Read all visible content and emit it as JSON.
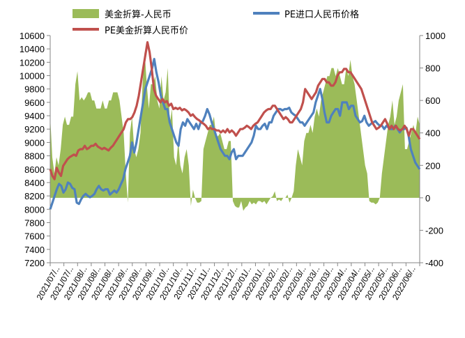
{
  "chart_data": {
    "type": "line",
    "title": "",
    "xlabel": "",
    "ylabel": "",
    "y_left": {
      "min": 7200,
      "max": 10600,
      "step": 200
    },
    "y_right": {
      "min": -400,
      "max": 1000,
      "step": 200
    },
    "grid": false,
    "legend_position": "top",
    "legend": [
      {
        "key": "diff",
        "label": "美金折算-人民币",
        "color": "#9bbb59",
        "style": "area"
      },
      {
        "key": "cny",
        "label": "PE进口人民币价格",
        "color": "#4f81bd",
        "style": "line"
      },
      {
        "key": "usd",
        "label": "PE美金折算人民币价",
        "color": "#c0504d",
        "style": "line"
      }
    ],
    "x_tick_labels": [
      "2021/07/..",
      "2021/07/..",
      "2021/08/..",
      "2021/08/..",
      "2021/08/..",
      "2021/09/..",
      "2021/09/..",
      "2021/09/..",
      "2021/10/..",
      "2021/10/..",
      "2021/11/..",
      "2021/11/..",
      "2021/12/..",
      "2021/12/..",
      "2022/01/..",
      "2022/01/..",
      "2022/02/..",
      "2022/02/..",
      "2022/03/..",
      "2022/03/..",
      "2022/03/..",
      "2022/04/..",
      "2022/04/..",
      "2022/05/..",
      "2022/05/..",
      "2022/06/..",
      "2022/06/.."
    ],
    "series": [
      {
        "name": "PE进口人民币价格",
        "axis": "left",
        "values": [
          8000,
          8100,
          8200,
          8300,
          8380,
          8350,
          8250,
          8300,
          8400,
          8380,
          8320,
          8300,
          8100,
          8080,
          8150,
          8200,
          8230,
          8200,
          8180,
          8200,
          8230,
          8300,
          8350,
          8300,
          8280,
          8300,
          8300,
          8220,
          8250,
          8280,
          8250,
          8300,
          8380,
          8450,
          8600,
          8700,
          8800,
          9000,
          8850,
          9000,
          9200,
          9400,
          9600,
          9800,
          9900,
          10000,
          10100,
          10250,
          10050,
          9900,
          9700,
          9600,
          9500,
          9500,
          9300,
          9200,
          9100,
          9000,
          8950,
          9200,
          9300,
          9250,
          9350,
          9300,
          9250,
          9200,
          9280,
          9200,
          9300,
          9320,
          9400,
          9500,
          9420,
          9300,
          9200,
          9100,
          9000,
          8900,
          8850,
          8800,
          8800,
          8750,
          8850,
          8900,
          8750,
          8800,
          8800,
          8800,
          8850,
          8900,
          8950,
          9000,
          9100,
          9250,
          9200,
          9200,
          9250,
          9280,
          9200,
          9300,
          9300,
          9400,
          9450,
          9500,
          9500,
          9480,
          9500,
          9500,
          9520,
          9450,
          9420,
          9400,
          9350,
          9300,
          9300,
          9250,
          9300,
          9350,
          9400,
          9450,
          9600,
          9700,
          9800,
          9650,
          9450,
          9300,
          9300,
          9400,
          9450,
          9500,
          9500,
          9400,
          9600,
          9600,
          9600,
          9500,
          9550,
          9550,
          9400,
          9350,
          9300,
          9320,
          9400,
          9300,
          9250,
          9280,
          9300,
          9320,
          9280,
          9250,
          9250,
          9200,
          9250,
          9220,
          9200,
          9200,
          9250,
          9200,
          9150,
          9200,
          9200,
          9220,
          9100,
          8900,
          8800,
          8700,
          8650,
          8600
        ]
      },
      {
        "name": "PE美金折算人民币价",
        "axis": "left",
        "values": [
          8600,
          8500,
          8450,
          8620,
          8550,
          8500,
          8650,
          8700,
          8750,
          8780,
          8800,
          8820,
          8800,
          8880,
          8900,
          8900,
          8950,
          8900,
          8920,
          8950,
          8950,
          8980,
          8940,
          8920,
          8900,
          8920,
          8900,
          8880,
          8920,
          8950,
          9000,
          9050,
          9100,
          9150,
          9200,
          9300,
          9350,
          9350,
          9380,
          9450,
          9550,
          9700,
          9900,
          10100,
          10300,
          10500,
          10350,
          10100,
          9800,
          9700,
          9650,
          9600,
          9650,
          9600,
          9620,
          9550,
          9580,
          9500,
          9520,
          9500,
          9520,
          9480,
          9500,
          9480,
          9450,
          9400,
          9420,
          9380,
          9350,
          9330,
          9300,
          9280,
          9250,
          9200,
          9220,
          9200,
          9200,
          9180,
          9180,
          9150,
          9180,
          9150,
          9200,
          9150,
          9180,
          9150,
          9100,
          9150,
          9200,
          9200,
          9220,
          9250,
          9230,
          9200,
          9250,
          9280,
          9300,
          9350,
          9400,
          9450,
          9480,
          9500,
          9500,
          9550,
          9550,
          9500,
          9450,
          9400,
          9350,
          9380,
          9350,
          9300,
          9300,
          9350,
          9400,
          9450,
          9500,
          9600,
          9800,
          9750,
          9700,
          9650,
          9700,
          9750,
          9850,
          9900,
          9950,
          9950,
          9900,
          9900,
          9850,
          9850,
          9900,
          10000,
          10050,
          10050,
          10100,
          10100,
          10050,
          10050,
          10000,
          9950,
          9900,
          9850,
          9800,
          9700,
          9600,
          9500,
          9400,
          9300,
          9250,
          9200,
          9220,
          9250,
          9300,
          9350,
          9280,
          9200,
          9250,
          9200,
          9250,
          9200,
          9180,
          9200,
          9250,
          9200,
          9100,
          9200,
          9200,
          9150,
          9100,
          9050
        ]
      },
      {
        "name": "美金折算-人民币",
        "axis": "right",
        "values": [
          500,
          250,
          150,
          250,
          200,
          300,
          450,
          500,
          450,
          450,
          500,
          500,
          700,
          780,
          600,
          620,
          600,
          620,
          650,
          650,
          600,
          600,
          550,
          550,
          550,
          600,
          550,
          550,
          600,
          600,
          650,
          650,
          650,
          600,
          500,
          400,
          150,
          -30,
          400,
          500,
          300,
          250,
          300,
          400,
          700,
          900,
          700,
          550,
          700,
          700,
          750,
          600,
          550,
          750,
          600,
          650,
          800,
          450,
          550,
          250,
          200,
          350,
          200,
          150,
          250,
          300,
          200,
          -50,
          50,
          0,
          -30,
          -30,
          -20,
          300,
          350,
          400,
          450,
          450,
          500,
          380,
          380,
          400,
          350,
          300,
          300,
          350,
          350,
          -20,
          -50,
          -60,
          -60,
          -20,
          -80,
          -60,
          -50,
          -20,
          -40,
          -30,
          -40,
          -20,
          -20,
          -30,
          -20,
          -40,
          -20,
          0,
          10,
          40,
          -20,
          -10,
          -20,
          0,
          0,
          20,
          -30,
          0,
          40,
          200,
          300,
          250,
          200,
          350,
          400,
          400,
          450,
          400,
          500,
          550,
          500,
          600,
          650,
          700,
          750,
          750,
          800,
          800,
          750,
          800,
          750,
          700,
          700,
          800,
          750,
          850,
          750,
          700,
          600,
          500,
          400,
          300,
          200,
          150,
          -20,
          -30,
          -30,
          -40,
          -30,
          0,
          150,
          250,
          350,
          450,
          500,
          600,
          450,
          500,
          600,
          650,
          700,
          300,
          300,
          350,
          400,
          450,
          400,
          500,
          450
        ]
      }
    ]
  }
}
